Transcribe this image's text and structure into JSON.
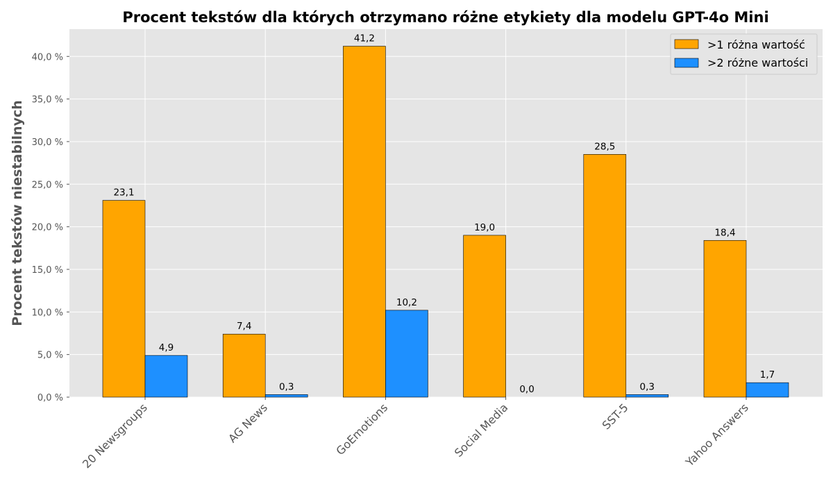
{
  "chart_data": {
    "type": "bar",
    "title": "Procent tekstów dla których otrzymano różne etykiety dla modelu GPT-4o Mini",
    "xlabel": "",
    "ylabel": "Procent tekstów niestabilnych",
    "categories": [
      "20 Newsgroups",
      "AG News",
      "GoEmotions",
      "Social Media",
      "SST-5",
      "Yahoo Answers"
    ],
    "series": [
      {
        "name": ">1 różna wartość",
        "color": "#FFA500",
        "values": [
          23.1,
          7.4,
          41.2,
          19.0,
          28.5,
          18.4
        ],
        "value_labels": [
          "23,1",
          "7,4",
          "41,2",
          "19,0",
          "28,5",
          "18,4"
        ]
      },
      {
        "name": ">2 różne wartości",
        "color": "#1E90FF",
        "values": [
          4.9,
          0.3,
          10.2,
          0.0,
          0.3,
          1.7
        ],
        "value_labels": [
          "4,9",
          "0,3",
          "10,2",
          "0,0",
          "0,3",
          "1,7"
        ]
      }
    ],
    "ylim": [
      0,
      43.2
    ],
    "yticks": [
      0,
      5,
      10,
      15,
      20,
      25,
      30,
      35,
      40
    ],
    "ytick_labels": [
      "0,0 %",
      "5,0 %",
      "10,0 %",
      "15,0 %",
      "20,0 %",
      "25,0 %",
      "30,0 %",
      "35,0 %",
      "40,0 %"
    ],
    "grid": true,
    "legend": "top-right",
    "background": "#E5E5E5"
  }
}
